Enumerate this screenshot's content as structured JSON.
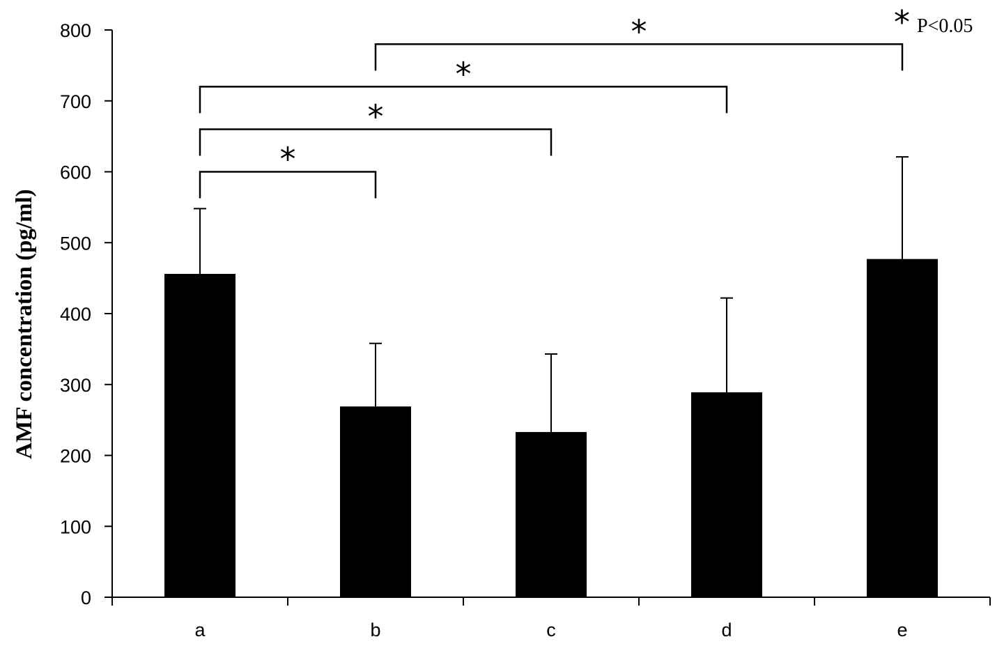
{
  "chart_data": {
    "type": "bar",
    "categories": [
      "a",
      "b",
      "c",
      "d",
      "e"
    ],
    "values": [
      456,
      269,
      233,
      289,
      477
    ],
    "error_upper": [
      548,
      358,
      343,
      422,
      621
    ],
    "ylabel": "AMF concentration  (pg/ml)",
    "xlabel": "",
    "ylim": [
      0,
      800
    ],
    "yticks": [
      0,
      100,
      200,
      300,
      400,
      500,
      600,
      700,
      800
    ],
    "bar_color": "#000000",
    "grid": false,
    "significance": [
      {
        "from": "a",
        "to": "b",
        "label": "*",
        "height": 600
      },
      {
        "from": "a",
        "to": "c",
        "label": "*",
        "height": 660
      },
      {
        "from": "a",
        "to": "d",
        "label": "*",
        "height": 720
      },
      {
        "from": "b",
        "to": "e",
        "label": "*",
        "height": 780
      }
    ],
    "annotation": {
      "symbol": "*",
      "text": "P<0.05"
    }
  }
}
